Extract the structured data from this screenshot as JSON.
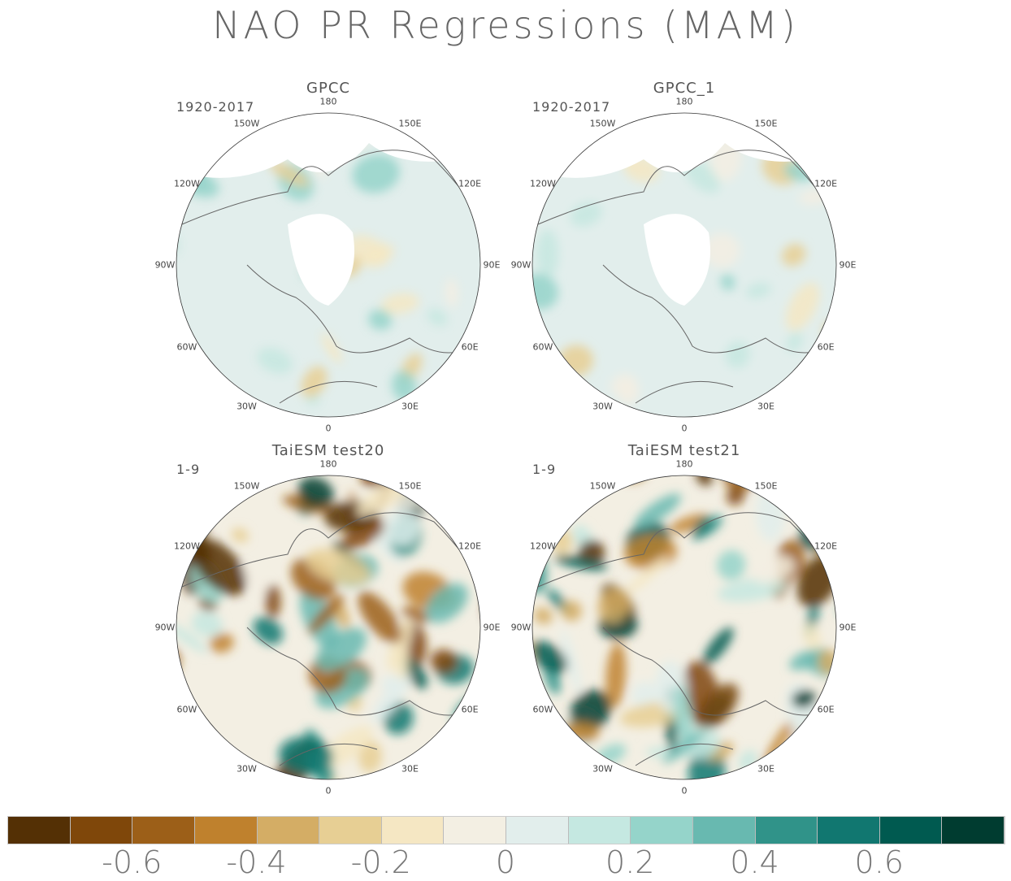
{
  "title": "NAO PR Regressions (MAM)",
  "panels": [
    {
      "title": "GPCC",
      "period": "1920-2017",
      "style": "obs"
    },
    {
      "title": "GPCC_1",
      "period": "1920-2017",
      "style": "obs"
    },
    {
      "title": "TaiESM test20",
      "period": "1-9",
      "style": "model"
    },
    {
      "title": "TaiESM test21",
      "period": "1-9",
      "style": "model"
    }
  ],
  "longitudes": [
    "180",
    "150E",
    "120E",
    "90E",
    "60E",
    "30E",
    "0",
    "30W",
    "60W",
    "90W",
    "120W",
    "150W"
  ],
  "colorbar": {
    "colors": [
      "#543005",
      "#7f470a",
      "#9c5f18",
      "#bf812d",
      "#d4ad65",
      "#e7cf94",
      "#f5e7c3",
      "#f3efe3",
      "#e2eeec",
      "#c5e8e1",
      "#95d4ca",
      "#68b9b0",
      "#309389",
      "#117770",
      "#005a50",
      "#003c30"
    ],
    "labels": [
      "-0.6",
      "-0.4",
      "-0.2",
      "0",
      "0.2",
      "0.4",
      "0.6"
    ]
  }
}
